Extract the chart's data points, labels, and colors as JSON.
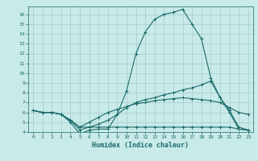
{
  "xlabel": "Humidex (Indice chaleur)",
  "x": [
    0,
    1,
    2,
    3,
    4,
    5,
    6,
    7,
    8,
    9,
    10,
    11,
    12,
    13,
    14,
    15,
    16,
    17,
    18,
    19,
    20,
    21,
    22,
    23
  ],
  "line1": [
    6.2,
    6.0,
    6.0,
    5.8,
    5.0,
    3.8,
    4.2,
    4.3,
    4.3,
    5.8,
    8.2,
    12.0,
    14.2,
    15.5,
    16.0,
    16.2,
    16.5,
    15.0,
    13.5,
    9.5,
    7.5,
    6.0,
    4.3,
    4.2
  ],
  "line2": [
    6.2,
    6.0,
    6.0,
    5.8,
    5.2,
    4.2,
    4.5,
    4.8,
    5.2,
    5.8,
    6.5,
    7.0,
    7.3,
    7.5,
    7.8,
    8.0,
    8.3,
    8.5,
    8.8,
    9.2,
    7.5,
    6.2,
    4.5,
    4.2
  ],
  "line3": [
    6.2,
    6.0,
    6.0,
    5.8,
    5.2,
    4.5,
    5.0,
    5.5,
    6.0,
    6.3,
    6.6,
    6.9,
    7.0,
    7.2,
    7.3,
    7.4,
    7.5,
    7.4,
    7.3,
    7.2,
    7.0,
    6.5,
    6.0,
    5.8
  ],
  "line4": [
    6.2,
    6.0,
    6.0,
    5.8,
    5.2,
    4.5,
    4.5,
    4.5,
    4.5,
    4.5,
    4.5,
    4.5,
    4.5,
    4.5,
    4.5,
    4.5,
    4.5,
    4.5,
    4.5,
    4.5,
    4.5,
    4.5,
    4.3,
    4.2
  ],
  "ylim": [
    4,
    16.8
  ],
  "xlim": [
    -0.5,
    23.5
  ],
  "yticks": [
    4,
    5,
    6,
    7,
    8,
    9,
    10,
    11,
    12,
    13,
    14,
    15,
    16
  ],
  "xticks": [
    0,
    1,
    2,
    3,
    4,
    5,
    6,
    7,
    8,
    9,
    10,
    11,
    12,
    13,
    14,
    15,
    16,
    17,
    18,
    19,
    20,
    21,
    22,
    23
  ],
  "line_color": "#1a6b6b",
  "bg_color": "#c8eae8",
  "grid_color": "#a8cccb"
}
